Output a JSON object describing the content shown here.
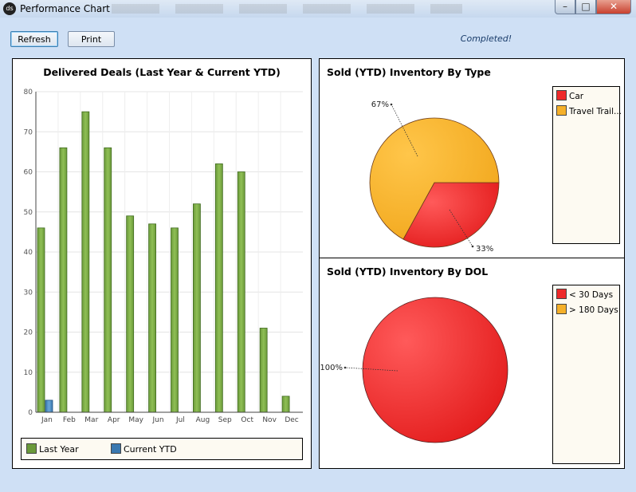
{
  "window": {
    "title": "Performance Chart",
    "icon": "ds",
    "minimize": "–",
    "maximize": "□",
    "close": "✕"
  },
  "toolbar": {
    "refresh_label": "Refresh",
    "print_label": "Print",
    "status_text": "Completed!"
  },
  "bar_chart": {
    "title": "Delivered Deals (Last Year & Current YTD)",
    "legend": [
      {
        "label": "Last Year",
        "color": "#6b9a3a"
      },
      {
        "label": "Current YTD",
        "color": "#3a78b0"
      }
    ]
  },
  "pie_type": {
    "title": "Sold (YTD) Inventory By Type",
    "legend": [
      {
        "label": "Car",
        "color": "#ee2a2a"
      },
      {
        "label": "Travel Trail...",
        "color": "#f5b02a"
      }
    ]
  },
  "pie_dol": {
    "title": "Sold (YTD) Inventory By DOL",
    "legend": [
      {
        "label": "< 30 Days",
        "color": "#ee2a2a"
      },
      {
        "label": "> 180 Days",
        "color": "#f5b02a"
      }
    ]
  },
  "chart_data": [
    {
      "type": "bar",
      "title": "Delivered Deals (Last Year & Current YTD)",
      "categories": [
        "Jan",
        "Feb",
        "Mar",
        "Apr",
        "May",
        "Jun",
        "Jul",
        "Aug",
        "Sep",
        "Oct",
        "Nov",
        "Dec"
      ],
      "series": [
        {
          "name": "Last Year",
          "color": "#6b9a3a",
          "values": [
            46,
            66,
            75,
            66,
            49,
            47,
            46,
            52,
            62,
            60,
            21,
            4
          ]
        },
        {
          "name": "Current YTD",
          "color": "#3a78b0",
          "values": [
            3,
            0,
            0,
            0,
            0,
            0,
            0,
            0,
            0,
            0,
            0,
            0
          ]
        }
      ],
      "ylim": [
        0,
        80
      ],
      "yticks": [
        0,
        10,
        20,
        30,
        40,
        50,
        60,
        70,
        80
      ],
      "grid": true,
      "legend_position": "bottom"
    },
    {
      "type": "pie",
      "title": "Sold (YTD) Inventory By Type",
      "labels": [
        "Car",
        "Travel Trail..."
      ],
      "values": [
        33,
        67
      ],
      "value_labels": [
        "33%",
        "67%"
      ],
      "colors": [
        "#ee2a2a",
        "#f5b02a"
      ],
      "legend_position": "right"
    },
    {
      "type": "pie",
      "title": "Sold (YTD) Inventory By DOL",
      "labels": [
        "< 30 Days",
        "> 180 Days"
      ],
      "values": [
        100,
        0
      ],
      "value_labels": [
        "100%"
      ],
      "colors": [
        "#ee2a2a",
        "#f5b02a"
      ],
      "legend_position": "right"
    }
  ]
}
